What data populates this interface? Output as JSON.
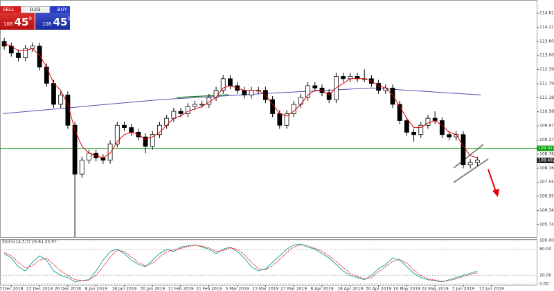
{
  "trade_panel": {
    "sell": "SELL",
    "lot": "0.01",
    "buy": "BUY",
    "sell_price": {
      "big": "108",
      "pips": "45",
      "fraction": "9"
    },
    "buy_price": {
      "big": "108",
      "pips": "45",
      "fraction": "1"
    }
  },
  "chart_data": {
    "type": "candlestick",
    "xlim": [
      -0.6,
      75.4
    ],
    "xticks": [
      {
        "value": 1,
        "label": "3 Dec 2018"
      },
      {
        "value": 5,
        "label": "13 Dec 2018"
      },
      {
        "value": 9,
        "label": "26 Dec 2018"
      },
      {
        "value": 13,
        "label": "8 Jan 2019"
      },
      {
        "value": 17,
        "label": "18 Jan 2019"
      },
      {
        "value": 21,
        "label": "30 Jan 2019"
      },
      {
        "value": 25,
        "label": "11 Feb 2019"
      },
      {
        "value": 29,
        "label": "21 Feb 2019"
      },
      {
        "value": 33,
        "label": "5 Mar 2019"
      },
      {
        "value": 37,
        "label": "15 Mar 2019"
      },
      {
        "value": 41,
        "label": "27 Mar 2019"
      },
      {
        "value": 45,
        "label": "8 Apr 2019"
      },
      {
        "value": 49,
        "label": "18 Apr 2019"
      },
      {
        "value": 53,
        "label": "30 Apr 2019"
      },
      {
        "value": 57,
        "label": "10 May 2019"
      },
      {
        "value": 61,
        "label": "22 May 2019"
      },
      {
        "value": 65,
        "label": "3 Jun 2019"
      },
      {
        "value": 69,
        "label": "13 Jun 2019"
      }
    ],
    "ylim": [
      105.2,
      115.23
    ],
    "yticks": [
      114.815,
      114.21,
      {
        "value": 113.605,
        "label": "113.605"
      },
      {
        "value": 113,
        "label": "113.000"
      },
      112.395,
      {
        "value": 111.79,
        "label": "111.790"
      },
      111.185,
      {
        "value": 110.58,
        "label": "110.580"
      },
      109.975,
      {
        "value": 109.37,
        "label": "109.370"
      },
      108.765,
      {
        "value": 108.16,
        "label": "108.160"
      },
      107.555,
      {
        "value": 106.95,
        "label": "106.950"
      },
      106.345,
      {
        "value": 105.74,
        "label": "105.740"
      }
    ],
    "up_color": "#ffffff",
    "down_color": "#000000",
    "open": [
      113.6,
      113.4,
      113.1,
      112.9,
      113.3,
      113.4,
      112.5,
      111.8,
      110.9,
      111.3,
      110.0,
      107.9,
      108.5,
      108.8,
      108.6,
      108.5,
      109.2,
      110.0,
      109.9,
      109.7,
      109.5,
      109.1,
      109.6,
      110.0,
      110.3,
      110.6,
      110.5,
      110.8,
      110.9,
      110.9,
      111.2,
      111.5,
      112.0,
      111.7,
      111.5,
      111.3,
      111.5,
      111.5,
      111.1,
      110.5,
      110.0,
      110.5,
      110.9,
      111.2,
      111.7,
      111.6,
      111.4,
      111.1,
      112.1,
      112.0,
      112.1,
      112.0,
      112.0,
      111.8,
      111.5,
      111.6,
      110.9,
      110.2,
      109.7,
      109.6,
      110.0,
      110.3,
      110.2,
      109.6,
      109.5,
      109.6,
      108.3,
      108.4
    ],
    "high": [
      113.75,
      113.55,
      113.25,
      113.45,
      113.55,
      113.55,
      112.65,
      111.95,
      111.45,
      111.45,
      110.15,
      108.65,
      108.95,
      108.95,
      108.75,
      109.35,
      110.15,
      110.15,
      110.05,
      109.85,
      109.65,
      109.75,
      110.15,
      110.45,
      110.75,
      110.75,
      110.95,
      111.05,
      111.05,
      111.35,
      111.65,
      112.15,
      112.15,
      111.85,
      111.65,
      111.65,
      111.65,
      111.65,
      111.25,
      110.65,
      110.65,
      111.05,
      111.35,
      111.85,
      111.85,
      111.75,
      111.55,
      112.25,
      112.25,
      112.25,
      112.25,
      112.4,
      112.15,
      111.95,
      111.75,
      111.75,
      111.05,
      110.35,
      109.85,
      110.15,
      110.45,
      110.6,
      110.35,
      109.75,
      109.75,
      109.75,
      108.55,
      108.65
    ],
    "low": [
      113.25,
      112.95,
      112.75,
      112.75,
      113.15,
      112.35,
      111.65,
      110.75,
      110.75,
      109.85,
      105.2,
      107.75,
      108.35,
      108.45,
      108.35,
      108.35,
      109.05,
      109.75,
      109.55,
      109.35,
      108.8,
      108.95,
      109.45,
      109.85,
      110.15,
      110.35,
      110.35,
      110.65,
      110.75,
      110.75,
      111.05,
      111.35,
      111.55,
      111.35,
      111.15,
      111.15,
      111.35,
      110.95,
      110.35,
      109.85,
      109.85,
      110.35,
      110.75,
      111.05,
      111.45,
      111.25,
      110.95,
      110.95,
      111.85,
      111.85,
      111.85,
      111.85,
      111.65,
      111.35,
      111.35,
      110.75,
      110.05,
      109.55,
      109.3,
      109.45,
      109.85,
      110.05,
      109.45,
      109.35,
      109.35,
      108.15,
      108.15,
      108.25
    ],
    "close": [
      113.4,
      113.1,
      112.9,
      113.3,
      113.4,
      112.5,
      111.8,
      110.9,
      111.3,
      110.0,
      107.9,
      108.5,
      108.8,
      108.6,
      108.5,
      109.2,
      110.0,
      109.9,
      109.7,
      109.5,
      109.1,
      109.6,
      110.0,
      110.3,
      110.6,
      110.5,
      110.8,
      110.9,
      110.9,
      111.2,
      111.5,
      112.0,
      111.7,
      111.5,
      111.3,
      111.5,
      111.5,
      111.1,
      110.5,
      110.0,
      110.5,
      110.9,
      111.2,
      111.7,
      111.6,
      111.4,
      111.1,
      112.1,
      112.0,
      112.1,
      112.0,
      112.0,
      111.8,
      111.5,
      111.6,
      110.9,
      110.2,
      109.7,
      109.6,
      110.0,
      110.3,
      110.2,
      109.6,
      109.5,
      109.6,
      108.3,
      108.4,
      108.5
    ],
    "ma_fast": {
      "color": "#e00000",
      "values": [
        113.5,
        113.4,
        113.2,
        113.2,
        113.3,
        113.0,
        112.5,
        111.8,
        111.5,
        110.9,
        109.8,
        109.1,
        108.8,
        108.7,
        108.6,
        108.8,
        109.3,
        109.6,
        109.7,
        109.6,
        109.4,
        109.5,
        109.7,
        110.0,
        110.3,
        110.4,
        110.6,
        110.7,
        110.8,
        111.0,
        111.2,
        111.6,
        111.7,
        111.6,
        111.5,
        111.5,
        111.5,
        111.3,
        110.9,
        110.5,
        110.4,
        110.6,
        110.9,
        111.3,
        111.5,
        111.5,
        111.3,
        111.6,
        111.8,
        112.0,
        112.0,
        112.0,
        111.9,
        111.7,
        111.6,
        111.3,
        110.8,
        110.3,
        109.9,
        109.9,
        110.1,
        110.2,
        110.0,
        109.7,
        109.6,
        109.1,
        108.7,
        108.6
      ]
    },
    "ma_slow": {
      "color": "#5050b0",
      "x": [
        -0.2,
        22,
        39,
        52,
        67.5
      ],
      "values": [
        110.5,
        111.1,
        111.4,
        111.6,
        111.3
      ]
    },
    "hline": {
      "value": 109.011,
      "color": "#10a010"
    },
    "last_price": 108.492,
    "stoch": {
      "title": "Stoch(14,3,3) 29.84 25.97",
      "ylim": [
        0,
        100
      ],
      "yticks": [
        {
          "value": 100,
          "label": "100.00"
        },
        {
          "value": 80,
          "label": "80.00"
        },
        {
          "value": 20,
          "label": "20.00"
        },
        {
          "value": 0,
          "label": "0.00"
        }
      ],
      "main": {
        "color": "#20a8a0",
        "values": [
          70,
          60,
          40,
          30,
          50,
          65,
          55,
          30,
          20,
          15,
          5,
          8,
          10,
          30,
          55,
          75,
          80,
          70,
          55,
          45,
          40,
          55,
          70,
          80,
          75,
          85,
          88,
          90,
          85,
          80,
          70,
          80,
          85,
          75,
          60,
          40,
          30,
          35,
          50,
          65,
          80,
          90,
          92,
          85,
          80,
          70,
          60,
          45,
          30,
          20,
          15,
          10,
          20,
          35,
          45,
          60,
          55,
          40,
          25,
          15,
          10,
          8,
          5,
          10,
          15,
          20,
          25,
          30
        ]
      },
      "signal": {
        "color": "#e03030",
        "values": [
          72,
          65,
          50,
          37,
          42,
          55,
          60,
          45,
          30,
          20,
          10,
          8,
          9,
          20,
          40,
          62,
          78,
          75,
          62,
          50,
          42,
          48,
          62,
          75,
          78,
          82,
          86,
          89,
          87,
          83,
          75,
          77,
          83,
          80,
          68,
          50,
          35,
          33,
          42,
          57,
          72,
          85,
          90,
          88,
          82,
          75,
          65,
          52,
          38,
          25,
          18,
          12,
          15,
          28,
          40,
          52,
          57,
          48,
          32,
          20,
          12,
          9,
          6,
          8,
          12,
          17,
          22,
          26
        ]
      }
    }
  }
}
